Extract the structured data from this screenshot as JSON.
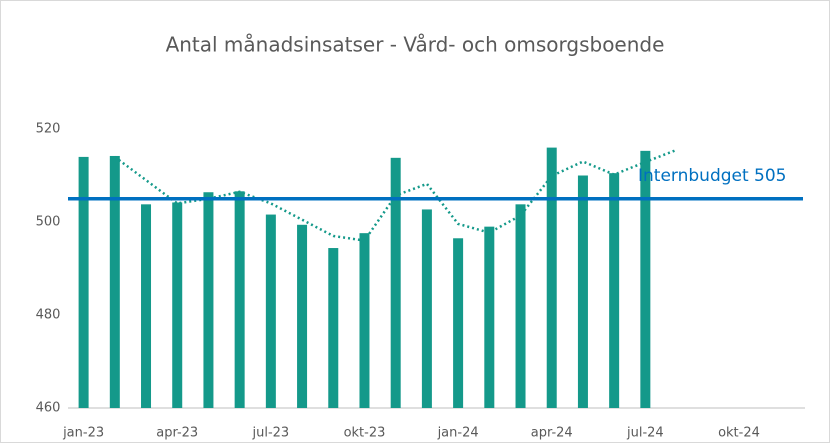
{
  "chart_data": {
    "type": "bar",
    "title": "Antal månadsinsatser - Vård- och omsorgsboende",
    "categories": [
      "jan-23",
      null,
      null,
      "apr-23",
      null,
      null,
      "jul-23",
      null,
      null,
      "okt-23",
      null,
      null,
      "jan-24",
      null,
      null,
      "apr-24",
      null,
      null,
      "jul-24",
      null,
      null,
      "okt-24",
      null,
      null
    ],
    "values": [
      514,
      514.2,
      503.8,
      504.2,
      506.4,
      506.6,
      501.6,
      499.4,
      494.4,
      497.6,
      513.8,
      502.7,
      496.5,
      499,
      503.8,
      516,
      510,
      510.5,
      515.3,
      null,
      null,
      null,
      null,
      null
    ],
    "color": "#14998a",
    "trendline": {
      "color": "#14998a",
      "values": [
        null,
        514,
        509,
        504,
        505,
        506.5,
        504,
        500.5,
        497,
        496,
        505.7,
        508.2,
        499.6,
        497.7,
        501.4,
        509.9,
        513,
        510.2,
        512.9,
        515.5,
        null,
        null,
        null,
        null
      ]
    },
    "budget": {
      "value": 505,
      "label": "Internbudget 505",
      "color": "#0070c0"
    },
    "ylim": [
      460,
      520
    ],
    "yticks": [
      460,
      480,
      500,
      520
    ],
    "grid": false
  }
}
